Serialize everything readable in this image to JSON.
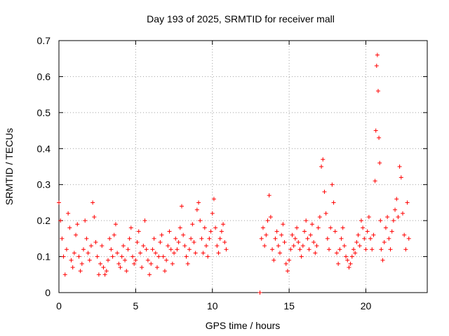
{
  "chart_data": {
    "type": "scatter",
    "title": "Day 193 of 2025, SRMTID for receiver mall",
    "xlabel": "GPS time / hours",
    "ylabel": "SRMTID / TECUs",
    "xlim": [
      0,
      24
    ],
    "ylim": [
      0,
      0.7
    ],
    "xticks": [
      0,
      5,
      10,
      15,
      20
    ],
    "xtick_labels": [
      "0",
      "5",
      "10",
      "15",
      "20"
    ],
    "yticks": [
      0,
      0.1,
      0.2,
      0.3,
      0.4,
      0.5,
      0.6,
      0.7
    ],
    "ytick_labels": [
      "0",
      "0.1",
      "0.2",
      "0.3",
      "0.4",
      "0.5",
      "0.6",
      "0.7"
    ],
    "grid": true,
    "marker": "+",
    "series": [
      {
        "name": "SRMTID",
        "color": "#ff0000",
        "points": [
          [
            0.0,
            0.25
          ],
          [
            0.1,
            0.2
          ],
          [
            0.2,
            0.15
          ],
          [
            0.3,
            0.1
          ],
          [
            0.4,
            0.05
          ],
          [
            0.5,
            0.12
          ],
          [
            0.6,
            0.22
          ],
          [
            0.7,
            0.18
          ],
          [
            0.8,
            0.09
          ],
          [
            0.9,
            0.07
          ],
          [
            1.0,
            0.11
          ],
          [
            1.1,
            0.16
          ],
          [
            1.2,
            0.19
          ],
          [
            1.3,
            0.1
          ],
          [
            1.4,
            0.06
          ],
          [
            1.5,
            0.08
          ],
          [
            1.6,
            0.12
          ],
          [
            1.7,
            0.2
          ],
          [
            1.8,
            0.15
          ],
          [
            1.9,
            0.11
          ],
          [
            2.0,
            0.09
          ],
          [
            2.1,
            0.13
          ],
          [
            2.2,
            0.25
          ],
          [
            2.3,
            0.21
          ],
          [
            2.4,
            0.14
          ],
          [
            2.5,
            0.1
          ],
          [
            2.6,
            0.05
          ],
          [
            2.7,
            0.08
          ],
          [
            2.8,
            0.13
          ],
          [
            2.9,
            0.07
          ],
          [
            3.0,
            0.05
          ],
          [
            3.1,
            0.06
          ],
          [
            3.2,
            0.09
          ],
          [
            3.3,
            0.15
          ],
          [
            3.4,
            0.12
          ],
          [
            3.5,
            0.1
          ],
          [
            3.6,
            0.16
          ],
          [
            3.7,
            0.19
          ],
          [
            3.8,
            0.11
          ],
          [
            3.9,
            0.08
          ],
          [
            4.0,
            0.07
          ],
          [
            4.1,
            0.1
          ],
          [
            4.2,
            0.13
          ],
          [
            4.3,
            0.09
          ],
          [
            4.4,
            0.06
          ],
          [
            4.5,
            0.12
          ],
          [
            4.6,
            0.15
          ],
          [
            4.7,
            0.18
          ],
          [
            4.8,
            0.1
          ],
          [
            4.9,
            0.08
          ],
          [
            5.0,
            0.09
          ],
          [
            5.1,
            0.14
          ],
          [
            5.2,
            0.17
          ],
          [
            5.3,
            0.11
          ],
          [
            5.4,
            0.07
          ],
          [
            5.5,
            0.13
          ],
          [
            5.6,
            0.2
          ],
          [
            5.7,
            0.12
          ],
          [
            5.8,
            0.09
          ],
          [
            5.9,
            0.05
          ],
          [
            6.0,
            0.08
          ],
          [
            6.1,
            0.12
          ],
          [
            6.2,
            0.15
          ],
          [
            6.3,
            0.11
          ],
          [
            6.4,
            0.07
          ],
          [
            6.5,
            0.1
          ],
          [
            6.6,
            0.14
          ],
          [
            6.7,
            0.16
          ],
          [
            6.8,
            0.1
          ],
          [
            6.9,
            0.06
          ],
          [
            7.0,
            0.09
          ],
          [
            7.1,
            0.13
          ],
          [
            7.2,
            0.17
          ],
          [
            7.3,
            0.12
          ],
          [
            7.4,
            0.08
          ],
          [
            7.5,
            0.11
          ],
          [
            7.6,
            0.15
          ],
          [
            7.7,
            0.12
          ],
          [
            7.8,
            0.14
          ],
          [
            7.9,
            0.18
          ],
          [
            8.0,
            0.24
          ],
          [
            8.1,
            0.16
          ],
          [
            8.2,
            0.13
          ],
          [
            8.3,
            0.1
          ],
          [
            8.4,
            0.08
          ],
          [
            8.5,
            0.12
          ],
          [
            8.6,
            0.15
          ],
          [
            8.7,
            0.19
          ],
          [
            8.8,
            0.14
          ],
          [
            8.9,
            0.11
          ],
          [
            9.0,
            0.23
          ],
          [
            9.1,
            0.25
          ],
          [
            9.2,
            0.2
          ],
          [
            9.3,
            0.15
          ],
          [
            9.4,
            0.11
          ],
          [
            9.5,
            0.18
          ],
          [
            9.6,
            0.13
          ],
          [
            9.7,
            0.1
          ],
          [
            9.8,
            0.15
          ],
          [
            9.9,
            0.17
          ],
          [
            10.0,
            0.22
          ],
          [
            10.1,
            0.26
          ],
          [
            10.2,
            0.18
          ],
          [
            10.3,
            0.13
          ],
          [
            10.4,
            0.11
          ],
          [
            10.5,
            0.15
          ],
          [
            10.6,
            0.17
          ],
          [
            10.7,
            0.19
          ],
          [
            10.8,
            0.14
          ],
          [
            10.9,
            0.12
          ],
          [
            13.1,
            0.0
          ],
          [
            13.2,
            0.15
          ],
          [
            13.3,
            0.18
          ],
          [
            13.4,
            0.13
          ],
          [
            13.5,
            0.16
          ],
          [
            13.6,
            0.2
          ],
          [
            13.7,
            0.27
          ],
          [
            13.8,
            0.21
          ],
          [
            13.9,
            0.12
          ],
          [
            14.0,
            0.09
          ],
          [
            14.1,
            0.15
          ],
          [
            14.2,
            0.17
          ],
          [
            14.3,
            0.13
          ],
          [
            14.4,
            0.11
          ],
          [
            14.5,
            0.16
          ],
          [
            14.6,
            0.19
          ],
          [
            14.7,
            0.14
          ],
          [
            14.8,
            0.08
          ],
          [
            14.9,
            0.06
          ],
          [
            15.0,
            0.09
          ],
          [
            15.1,
            0.12
          ],
          [
            15.2,
            0.16
          ],
          [
            15.3,
            0.13
          ],
          [
            15.4,
            0.15
          ],
          [
            15.5,
            0.18
          ],
          [
            15.6,
            0.14
          ],
          [
            15.7,
            0.12
          ],
          [
            15.8,
            0.1
          ],
          [
            15.9,
            0.13
          ],
          [
            16.0,
            0.17
          ],
          [
            16.1,
            0.2
          ],
          [
            16.2,
            0.15
          ],
          [
            16.3,
            0.12
          ],
          [
            16.4,
            0.16
          ],
          [
            16.5,
            0.19
          ],
          [
            16.6,
            0.14
          ],
          [
            16.7,
            0.11
          ],
          [
            16.8,
            0.13
          ],
          [
            16.9,
            0.18
          ],
          [
            17.0,
            0.21
          ],
          [
            17.1,
            0.35
          ],
          [
            17.2,
            0.37
          ],
          [
            17.3,
            0.28
          ],
          [
            17.4,
            0.22
          ],
          [
            17.5,
            0.15
          ],
          [
            17.6,
            0.12
          ],
          [
            17.7,
            0.18
          ],
          [
            17.8,
            0.3
          ],
          [
            17.9,
            0.25
          ],
          [
            18.0,
            0.17
          ],
          [
            18.1,
            0.11
          ],
          [
            18.2,
            0.08
          ],
          [
            18.3,
            0.12
          ],
          [
            18.4,
            0.15
          ],
          [
            18.5,
            0.18
          ],
          [
            18.6,
            0.13
          ],
          [
            18.7,
            0.1
          ],
          [
            18.8,
            0.09
          ],
          [
            18.9,
            0.07
          ],
          [
            19.0,
            0.08
          ],
          [
            19.1,
            0.1
          ],
          [
            19.2,
            0.12
          ],
          [
            19.3,
            0.11
          ],
          [
            19.4,
            0.14
          ],
          [
            19.5,
            0.16
          ],
          [
            19.6,
            0.13
          ],
          [
            19.7,
            0.2
          ],
          [
            19.8,
            0.18
          ],
          [
            19.9,
            0.15
          ],
          [
            20.0,
            0.12
          ],
          [
            20.1,
            0.17
          ],
          [
            20.2,
            0.21
          ],
          [
            20.3,
            0.15
          ],
          [
            20.4,
            0.12
          ],
          [
            20.5,
            0.16
          ],
          [
            20.6,
            0.31
          ],
          [
            20.65,
            0.45
          ],
          [
            20.7,
            0.63
          ],
          [
            20.75,
            0.66
          ],
          [
            20.8,
            0.56
          ],
          [
            20.85,
            0.43
          ],
          [
            20.9,
            0.36
          ],
          [
            20.95,
            0.2
          ],
          [
            21.0,
            0.12
          ],
          [
            21.1,
            0.09
          ],
          [
            21.2,
            0.14
          ],
          [
            21.3,
            0.18
          ],
          [
            21.4,
            0.21
          ],
          [
            21.5,
            0.15
          ],
          [
            21.6,
            0.12
          ],
          [
            21.7,
            0.17
          ],
          [
            21.8,
            0.2
          ],
          [
            21.9,
            0.23
          ],
          [
            22.0,
            0.26
          ],
          [
            22.1,
            0.21
          ],
          [
            22.2,
            0.35
          ],
          [
            22.3,
            0.32
          ],
          [
            22.4,
            0.22
          ],
          [
            22.5,
            0.16
          ],
          [
            22.6,
            0.12
          ],
          [
            22.7,
            0.25
          ],
          [
            22.8,
            0.15
          ]
        ]
      }
    ]
  }
}
